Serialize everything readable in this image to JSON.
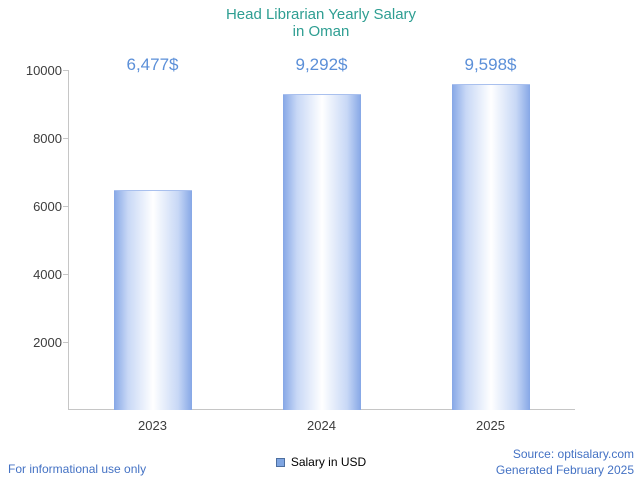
{
  "title": {
    "line1": "Head Librarian Yearly Salary",
    "line2": "in Oman"
  },
  "chart_data": {
    "type": "bar",
    "title": "Head Librarian Yearly Salary in Oman",
    "categories": [
      "2023",
      "2024",
      "2025"
    ],
    "values": [
      6477,
      9292,
      9598
    ],
    "value_labels": [
      "6,477$",
      "9,292$",
      "9,598$"
    ],
    "xlabel": "",
    "ylabel": "",
    "ylim": [
      0,
      10000
    ],
    "yticks": [
      2000,
      4000,
      6000,
      8000,
      10000
    ],
    "grid": false,
    "legend_position": "bottom",
    "legend_entries": [
      "Salary in USD"
    ]
  },
  "legend": {
    "label": "Salary in USD"
  },
  "footer": {
    "left": "For informational use only",
    "source": "Source: optisalary.com",
    "generated": "Generated February 2025"
  },
  "colors": {
    "title_text": "#2e9e92",
    "value_label_text": "#5b8fd8",
    "bar_edge": "#86a7e6",
    "bar_center": "#ffffff",
    "legend_swatch": "#7fa5e1",
    "footer_text": "#4472c4",
    "axis_line": "#c6c6c6",
    "tick_text": "#3d3d3d"
  }
}
